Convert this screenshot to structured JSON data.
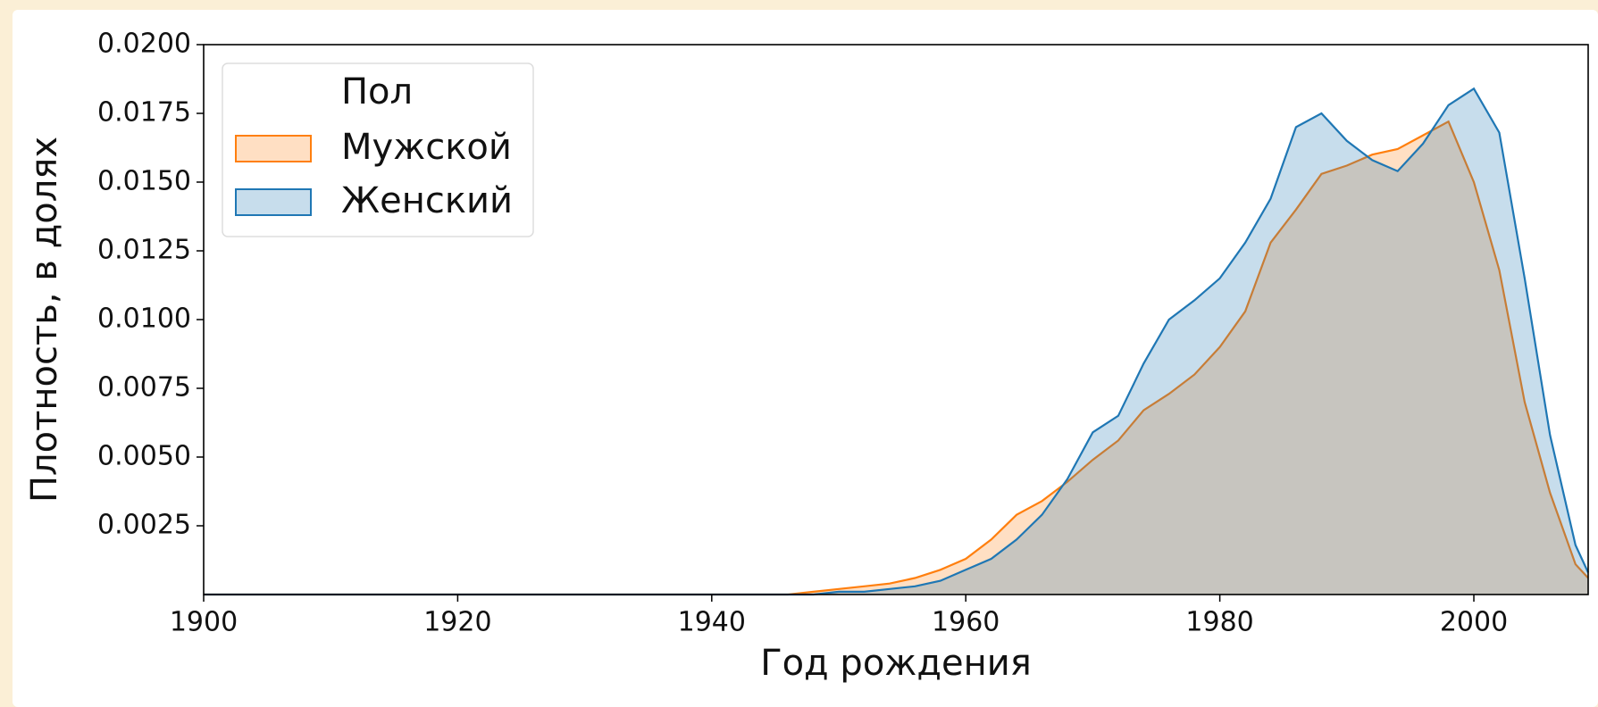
{
  "chart_data": {
    "type": "area",
    "x_label": "Год рождения",
    "y_label": "Плотность, в долях",
    "legend_title": "Пол",
    "legend_loc": "upper left",
    "x": [
      1900,
      1946,
      1948,
      1950,
      1952,
      1954,
      1956,
      1958,
      1960,
      1962,
      1964,
      1966,
      1968,
      1970,
      1972,
      1974,
      1976,
      1978,
      1980,
      1982,
      1984,
      1986,
      1988,
      1990,
      1992,
      1994,
      1996,
      1998,
      2000,
      2002,
      2004,
      2006,
      2008,
      2009
    ],
    "series": [
      {
        "name": "Мужской",
        "color": "#ff7f0e",
        "values": [
          0,
          0,
          0.0001,
          0.0002,
          0.0003,
          0.0004,
          0.0006,
          0.0009,
          0.0013,
          0.002,
          0.0029,
          0.0034,
          0.0041,
          0.0049,
          0.0056,
          0.0067,
          0.0073,
          0.008,
          0.009,
          0.0103,
          0.0128,
          0.014,
          0.0153,
          0.0156,
          0.016,
          0.0162,
          0.0167,
          0.0172,
          0.015,
          0.0118,
          0.007,
          0.0037,
          0.0011,
          0.0006
        ]
      },
      {
        "name": "Женский",
        "color": "#1f77b4",
        "values": [
          0,
          0,
          0,
          0.0001,
          0.0001,
          0.0002,
          0.0003,
          0.0005,
          0.0009,
          0.0013,
          0.002,
          0.0029,
          0.0042,
          0.0059,
          0.0065,
          0.0084,
          0.01,
          0.0107,
          0.0115,
          0.0128,
          0.0144,
          0.017,
          0.0175,
          0.0165,
          0.0158,
          0.0154,
          0.0164,
          0.0178,
          0.0184,
          0.0168,
          0.0115,
          0.0058,
          0.0018,
          0.0008
        ]
      }
    ],
    "xlim": [
      1900,
      2009
    ],
    "ylim": [
      0,
      0.02
    ],
    "xticks": [
      1900,
      1920,
      1940,
      1960,
      1980,
      2000
    ],
    "yticks": [
      0.0025,
      {
        "value": 0.005,
        "label": "0.0050"
      },
      0.0075,
      {
        "value": 0.01,
        "label": "0.0100"
      },
      0.0125,
      {
        "value": 0.015,
        "label": "0.0150"
      },
      0.0175,
      {
        "value": 0.02,
        "label": "0.0200"
      }
    ],
    "grid": false
  }
}
